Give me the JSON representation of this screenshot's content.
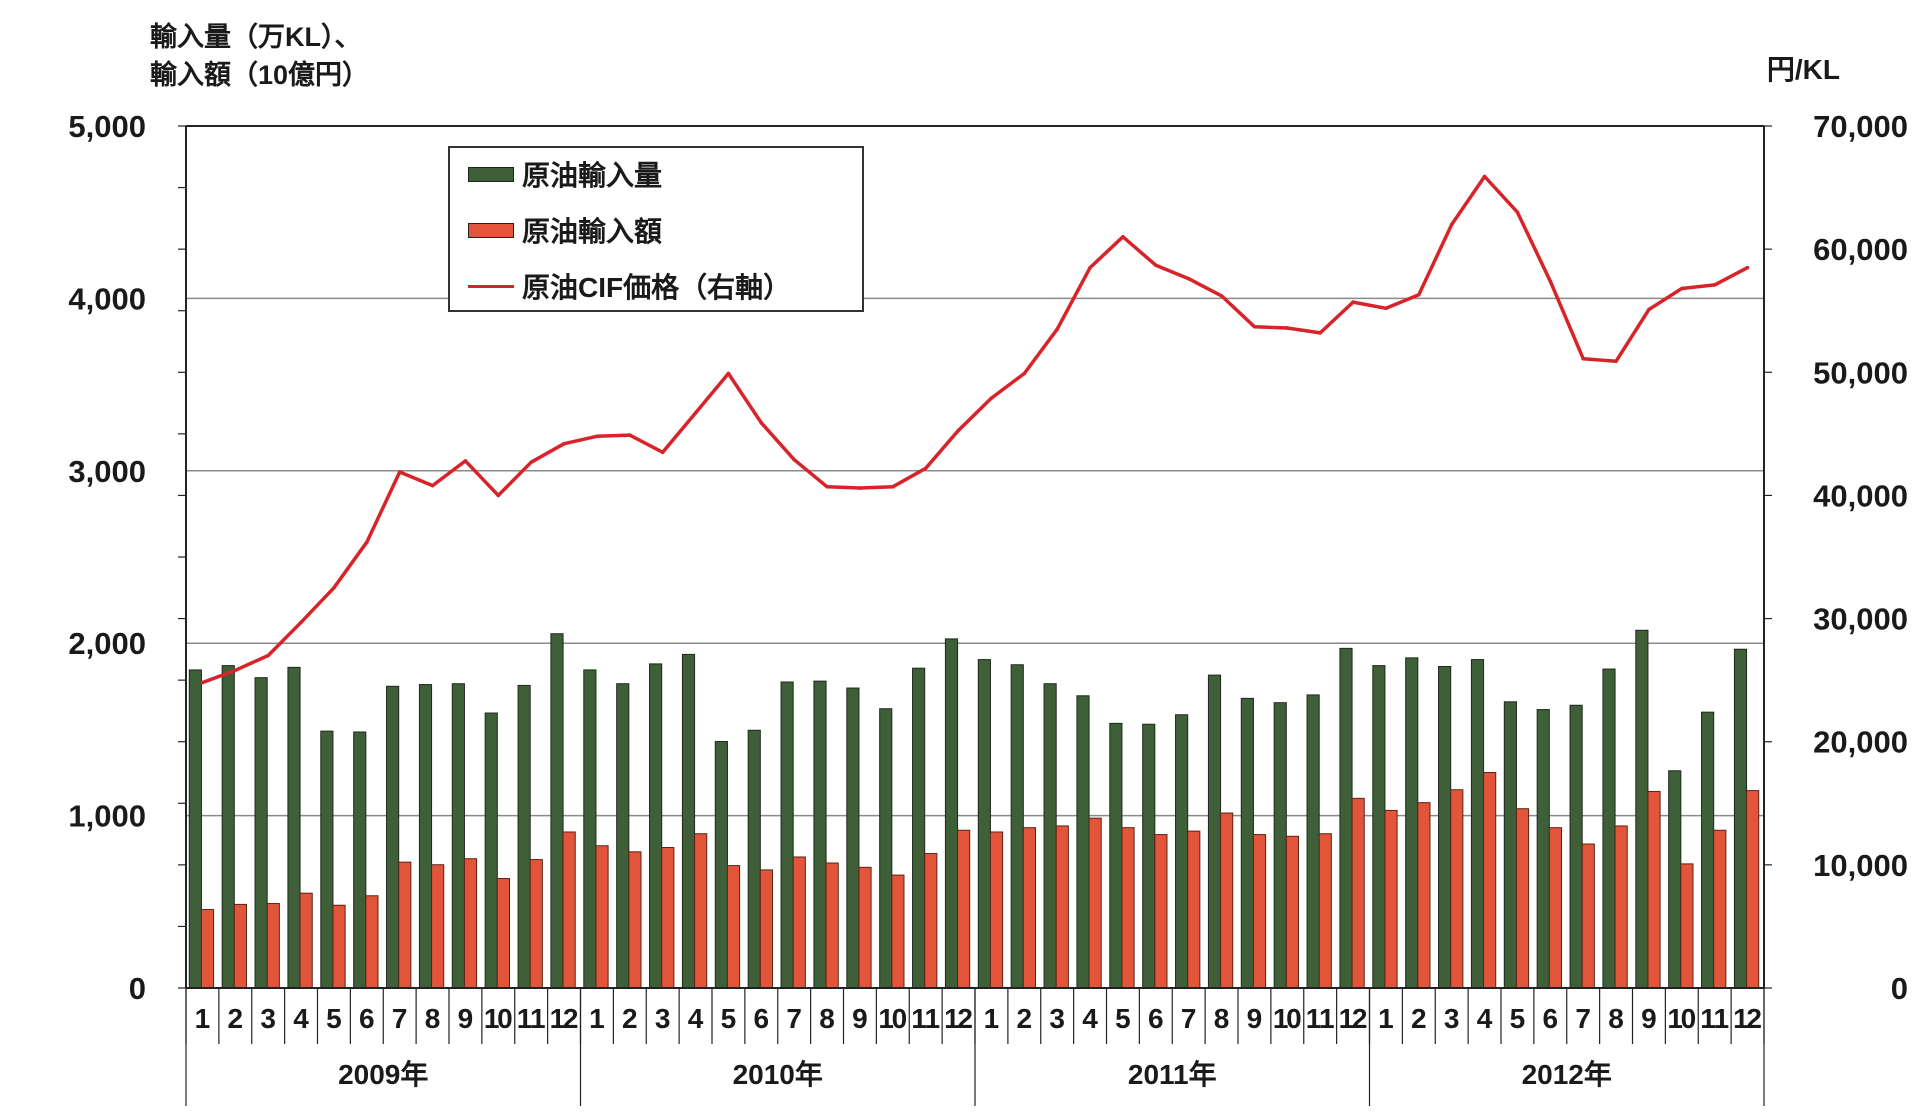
{
  "y_axis_left_label_line1": "輸入量（万KL）、",
  "y_axis_left_label_line2": "輸入額（10億円）",
  "y_axis_right_label": "円/KL",
  "chart_data": {
    "type": "bar+line",
    "legend_position": "top-left",
    "grid": true,
    "y_left": {
      "lim": [
        0,
        5000
      ],
      "ticks": [
        "0",
        "1,000",
        "2,000",
        "3,000",
        "4,000",
        "5,000"
      ]
    },
    "y_right": {
      "lim": [
        0,
        70000
      ],
      "ticks": [
        "0",
        "10,000",
        "20,000",
        "30,000",
        "40,000",
        "50,000",
        "60,000",
        "70,000"
      ]
    },
    "years": [
      "2009年",
      "2010年",
      "2011年",
      "2012年"
    ],
    "months": [
      "1",
      "2",
      "3",
      "4",
      "5",
      "6",
      "7",
      "8",
      "9",
      "10",
      "11",
      "12"
    ],
    "series": [
      {
        "name": "原油輸入量",
        "kind": "bar",
        "axis": "left",
        "color": "#3e5f38",
        "values": [
          1845,
          1870,
          1800,
          1860,
          1490,
          1485,
          1750,
          1760,
          1765,
          1595,
          1755,
          2055,
          1845,
          1765,
          1880,
          1935,
          1430,
          1495,
          1775,
          1780,
          1740,
          1620,
          1855,
          2025,
          1905,
          1875,
          1765,
          1695,
          1535,
          1530,
          1585,
          1815,
          1680,
          1655,
          1700,
          1970,
          1870,
          1915,
          1865,
          1905,
          1660,
          1615,
          1640,
          1850,
          2075,
          1260,
          1600,
          1965
        ]
      },
      {
        "name": "原油輸入額",
        "kind": "bar",
        "axis": "left",
        "color": "#e2553a",
        "values": [
          455,
          485,
          490,
          550,
          480,
          535,
          730,
          715,
          750,
          635,
          745,
          905,
          825,
          790,
          815,
          895,
          710,
          685,
          760,
          725,
          700,
          655,
          780,
          915,
          905,
          930,
          940,
          985,
          930,
          890,
          910,
          1015,
          890,
          880,
          895,
          1100,
          1030,
          1075,
          1150,
          1250,
          1040,
          930,
          835,
          940,
          1140,
          720,
          915,
          1145
        ]
      },
      {
        "name": "原油CIF価格（右軸）",
        "kind": "line",
        "axis": "right",
        "color": "#d8232a",
        "values": [
          24800,
          25800,
          27000,
          29700,
          32500,
          36200,
          41900,
          40800,
          42800,
          40000,
          42700,
          44200,
          44800,
          44900,
          43500,
          46700,
          49900,
          45900,
          42900,
          40700,
          40600,
          40700,
          42200,
          45300,
          47900,
          49900,
          53500,
          58500,
          61000,
          58700,
          57600,
          56200,
          53700,
          53600,
          53200,
          55700,
          55200,
          56300,
          62000,
          65900,
          63000,
          57400,
          51100,
          50900,
          55100,
          56800,
          57100,
          58500
        ]
      }
    ]
  }
}
